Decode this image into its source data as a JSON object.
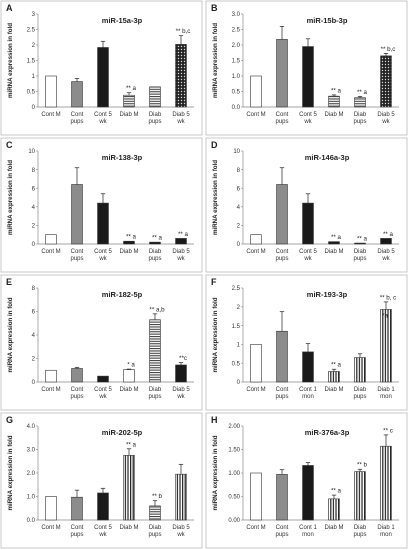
{
  "figure": {
    "panel_letters": [
      "A",
      "B",
      "C",
      "D",
      "E",
      "F",
      "G",
      "H"
    ]
  },
  "chart_data": [
    {
      "panel": "A",
      "type": "bar",
      "title": "miR-15a-3p",
      "ylabel": "miRNA expression in fold",
      "ylim": [
        0,
        3
      ],
      "yticks": [
        "0",
        "0.5",
        "1",
        "1.5",
        "2",
        "2.5",
        "3"
      ],
      "categories": [
        "Cont M",
        "Cont pups",
        "Cont 5 wk",
        "Diab M",
        "Diab pups",
        "Diab 5 wk"
      ],
      "values": [
        1.0,
        0.82,
        1.92,
        0.38,
        0.65,
        2.02
      ],
      "errors": [
        0,
        0.1,
        0.2,
        0.08,
        0,
        0.28
      ],
      "annotations": [
        "",
        "",
        "",
        "** a",
        "",
        "** b,c"
      ],
      "patterns": [
        "white",
        "gray",
        "black",
        "hlines",
        "hlines",
        "dots"
      ]
    },
    {
      "panel": "B",
      "type": "bar",
      "title": "miR-15b-3p",
      "ylabel": "miRNA expression in fold",
      "ylim": [
        0,
        3
      ],
      "yticks": [
        "0.0",
        "0.5",
        "1.0",
        "1.5",
        "2.0",
        "2.5",
        "3.0"
      ],
      "categories": [
        "Cont M",
        "Cont pups",
        "Cont 5 wk",
        "Diab M",
        "Diab pups",
        "Diab 5 wk"
      ],
      "values": [
        1.0,
        2.18,
        1.95,
        0.35,
        0.3,
        1.65
      ],
      "errors": [
        0,
        0.42,
        0.25,
        0.04,
        0.04,
        0.08
      ],
      "annotations": [
        "",
        "",
        "",
        "** a",
        "** a",
        "** b,c"
      ],
      "patterns": [
        "white",
        "gray",
        "black",
        "hlines",
        "hlines",
        "dots"
      ]
    },
    {
      "panel": "C",
      "type": "bar",
      "title": "miR-138-3p",
      "ylabel": "miRNA expression in fold",
      "ylim": [
        0,
        10
      ],
      "yticks": [
        "0",
        "2",
        "4",
        "6",
        "8",
        "10"
      ],
      "categories": [
        "Cont M",
        "Cont pups",
        "Cont 5 wk",
        "Diab M",
        "Diab pups",
        "Diab 5 wk"
      ],
      "values": [
        1.0,
        6.4,
        4.4,
        0.3,
        0.2,
        0.6
      ],
      "errors": [
        0,
        1.8,
        1.0,
        0,
        0,
        0
      ],
      "annotations": [
        "",
        "",
        "",
        "** a",
        "** a",
        "** a"
      ],
      "patterns": [
        "white",
        "gray",
        "black",
        "black",
        "black",
        "black"
      ]
    },
    {
      "panel": "D",
      "type": "bar",
      "title": "miR-146a-3p",
      "ylabel": "miRNA expression in fold",
      "ylim": [
        0,
        10
      ],
      "yticks": [
        "0",
        "2",
        "4",
        "6",
        "8",
        "10"
      ],
      "categories": [
        "Cont M",
        "Cont pups",
        "Cont 5 wk",
        "Diab M",
        "Diab pups",
        "Diab 5 wk"
      ],
      "values": [
        1.0,
        6.4,
        4.4,
        0.25,
        0.1,
        0.6
      ],
      "errors": [
        0,
        1.8,
        1.0,
        0,
        0,
        0
      ],
      "annotations": [
        "",
        "",
        "",
        "** a",
        "** a",
        "** a"
      ],
      "patterns": [
        "white",
        "gray",
        "black",
        "black",
        "black",
        "black"
      ]
    },
    {
      "panel": "E",
      "type": "bar",
      "title": "miR-182-5p",
      "ylabel": "miRNA expression in fold",
      "ylim": [
        0,
        8
      ],
      "yticks": [
        "0",
        "2",
        "4",
        "6",
        "8"
      ],
      "categories": [
        "Cont M",
        "Cont pups",
        "Cont 5 wk",
        "Diab M",
        "Diab pups",
        "Diab 5 wk"
      ],
      "values": [
        1.0,
        1.15,
        0.5,
        1.05,
        5.3,
        1.45
      ],
      "errors": [
        0,
        0.1,
        0,
        0.05,
        0.5,
        0.2
      ],
      "annotations": [
        "",
        "",
        "",
        "* a",
        "** a,b",
        "**c"
      ],
      "patterns": [
        "white",
        "gray",
        "black",
        "white",
        "hlines",
        "black"
      ]
    },
    {
      "panel": "F",
      "type": "bar",
      "title": "miR-193-3p",
      "ylabel": "miRNA expression in fold",
      "ylim": [
        0,
        2.5
      ],
      "yticks": [
        "0",
        "0.5",
        "1",
        "1.5",
        "2",
        "2.5"
      ],
      "categories": [
        "Cont M",
        "Cont pups",
        "Cont 1 mon",
        "Diab M",
        "Diab pups",
        "Diab 1 mon"
      ],
      "values": [
        1.0,
        1.35,
        0.8,
        0.28,
        0.65,
        1.93
      ],
      "errors": [
        0,
        0.52,
        0.22,
        0.06,
        0.1,
        0.2
      ],
      "annotations": [
        "",
        "",
        "",
        "** a",
        "",
        "** b, c"
      ],
      "extra_annotation": "*a",
      "patterns": [
        "white",
        "gray",
        "black",
        "vlines",
        "vlines",
        "vlines"
      ]
    },
    {
      "panel": "G",
      "type": "bar",
      "title": "miR-202-5p",
      "ylabel": "miRNA expression in fold",
      "ylim": [
        0,
        4
      ],
      "yticks": [
        "0.0",
        "1.0",
        "2.0",
        "3.0",
        "4.0"
      ],
      "categories": [
        "Cont M",
        "Cont pups",
        "Cont 5 wk",
        "Diab M",
        "Diab pups",
        "Diab 5 wk"
      ],
      "values": [
        1.0,
        0.97,
        1.15,
        2.75,
        0.6,
        1.95
      ],
      "errors": [
        0,
        0.3,
        0.2,
        0.28,
        0.22,
        0.42
      ],
      "annotations": [
        "",
        "",
        "",
        "** a",
        "** b",
        ""
      ],
      "patterns": [
        "white",
        "gray",
        "black",
        "vlines",
        "hlines",
        "vlines"
      ]
    },
    {
      "panel": "H",
      "type": "bar",
      "title": "miR-376a-3p",
      "ylabel": "miRNA expression in fold",
      "ylim": [
        0,
        2
      ],
      "yticks": [
        "0.00",
        "0.50",
        "1.00",
        "1.50",
        "2.00"
      ],
      "categories": [
        "Cont M",
        "Cont pups",
        "Cont 1 mon",
        "Diab M",
        "Diab pups",
        "Diab 1 mon"
      ],
      "values": [
        1.0,
        0.97,
        1.16,
        0.45,
        1.03,
        1.57
      ],
      "errors": [
        0,
        0.1,
        0.06,
        0.08,
        0.05,
        0.24
      ],
      "annotations": [
        "",
        "",
        "",
        "** a",
        "** b",
        "** c"
      ],
      "patterns": [
        "white",
        "gray",
        "black",
        "vlines",
        "vlines",
        "vlines"
      ]
    }
  ]
}
